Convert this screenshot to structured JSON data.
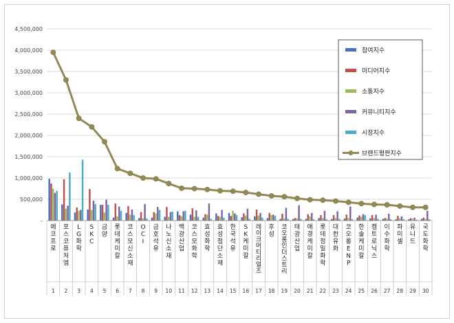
{
  "chart_data": {
    "type": "bar",
    "title": "",
    "xlabel": "",
    "ylabel": "",
    "ylim": [
      0,
      4500000
    ],
    "yticks": [
      "-",
      "500,000",
      "1,000,000",
      "1,500,000",
      "2,000,000",
      "2,500,000",
      "3,000,000",
      "3,500,000",
      "4,000,000",
      "4,500,000"
    ],
    "grid": true,
    "legend_position": "right",
    "numbers": [
      "1",
      "2",
      "3",
      "4",
      "5",
      "6",
      "7",
      "8",
      "9",
      "10",
      "11",
      "12",
      "13",
      "14",
      "15",
      "16",
      "17",
      "18",
      "19",
      "20",
      "21",
      "22",
      "23",
      "24",
      "25",
      "26",
      "27",
      "28",
      "29",
      "30"
    ],
    "categories": [
      "에코프로",
      "포스코퓨처엠",
      "LG화학",
      "SKC",
      "금양",
      "롯데케미칼",
      "코스모신소재",
      "OCI",
      "금호석유",
      "나노신소재",
      "백광산업",
      "코스모화학",
      "효성화학",
      "효성첨단소재",
      "한국석유",
      "SK케미칼",
      "레이크머티리얼즈",
      "후성",
      "코오롱인더스트리",
      "태광산업",
      "애경케미칼",
      "롯데정밀화학",
      "대한유화",
      "코오롱ENP",
      "한솔케미칼",
      "켐트로닉스",
      "이수화학",
      "파미셀",
      "유니드",
      "국도화학"
    ],
    "series": [
      {
        "name": "참여지수",
        "kind": "bar",
        "color": "#4472c4",
        "values": [
          980000,
          380000,
          190000,
          260000,
          370000,
          70000,
          180000,
          60000,
          70000,
          90000,
          220000,
          140000,
          70000,
          170000,
          180000,
          80000,
          100000,
          60000,
          40000,
          40000,
          40000,
          60000,
          40000,
          50000,
          70000,
          50000,
          40000,
          30000,
          30000,
          40000
        ]
      },
      {
        "name": "미디어지수",
        "kind": "bar",
        "color": "#c0504d",
        "values": [
          870000,
          970000,
          310000,
          740000,
          370000,
          400000,
          340000,
          200000,
          200000,
          320000,
          130000,
          290000,
          150000,
          110000,
          110000,
          170000,
          260000,
          180000,
          160000,
          60000,
          150000,
          130000,
          130000,
          140000,
          120000,
          130000,
          60000,
          110000,
          60000,
          70000
        ]
      },
      {
        "name": "소통지수",
        "kind": "bar",
        "color": "#9bbb59",
        "values": [
          750000,
          280000,
          230000,
          250000,
          190000,
          100000,
          140000,
          50000,
          170000,
          90000,
          100000,
          90000,
          140000,
          90000,
          230000,
          120000,
          120000,
          130000,
          50000,
          50000,
          100000,
          60000,
          60000,
          60000,
          90000,
          60000,
          50000,
          50000,
          40000,
          40000
        ]
      },
      {
        "name": "커뮤니티지수",
        "kind": "bar",
        "color": "#8064a2",
        "values": [
          650000,
          350000,
          250000,
          470000,
          490000,
          330000,
          260000,
          390000,
          320000,
          200000,
          220000,
          240000,
          400000,
          250000,
          170000,
          280000,
          180000,
          140000,
          300000,
          360000,
          180000,
          230000,
          220000,
          330000,
          150000,
          140000,
          160000,
          100000,
          70000,
          230000
        ]
      },
      {
        "name": "시장지수",
        "kind": "bar",
        "color": "#4bacc6",
        "values": [
          700000,
          1130000,
          1430000,
          390000,
          370000,
          230000,
          130000,
          50000,
          250000,
          210000,
          230000,
          90000,
          40000,
          70000,
          130000,
          40000,
          70000,
          110000,
          40000,
          40000,
          30000,
          30000,
          40000,
          30000,
          130000,
          40000,
          30000,
          30000,
          20000,
          30000
        ]
      },
      {
        "name": "브랜드평판지수",
        "kind": "line",
        "color": "#938953",
        "values": [
          3950000,
          3300000,
          2400000,
          2200000,
          1850000,
          1220000,
          1110000,
          1000000,
          980000,
          870000,
          760000,
          750000,
          730000,
          700000,
          690000,
          660000,
          620000,
          580000,
          560000,
          520000,
          490000,
          480000,
          460000,
          430000,
          400000,
          380000,
          370000,
          340000,
          310000,
          310000
        ]
      }
    ]
  }
}
